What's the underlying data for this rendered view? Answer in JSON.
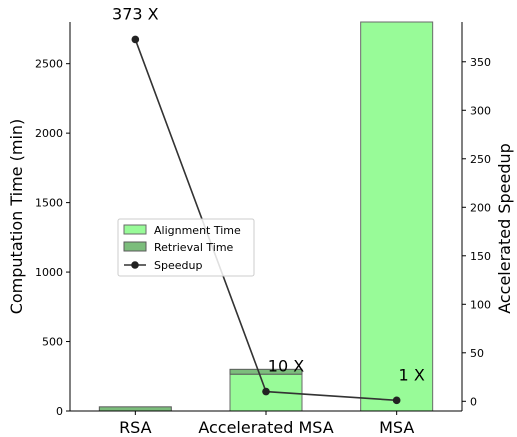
{
  "chart_data": {
    "type": "bar",
    "categories": [
      "RSA",
      "Accelerated MSA",
      "MSA"
    ],
    "series": [
      {
        "name": "Alignment Time",
        "axis": "left",
        "kind": "stacked-bar",
        "values": [
          0,
          265,
          2800
        ],
        "color": "#98fb98"
      },
      {
        "name": "Retrieval Time",
        "axis": "left",
        "kind": "stacked-bar",
        "values": [
          30,
          35,
          0
        ],
        "color": "#7cbd7c"
      },
      {
        "name": "Speedup",
        "axis": "right",
        "kind": "line",
        "values": [
          373,
          10,
          1
        ],
        "color": "#333333"
      }
    ],
    "ylabel": "Computation Time (min)",
    "y2label": "Accelerated Speedup",
    "ylim": [
      0,
      2800
    ],
    "y2lim": [
      -10,
      391
    ],
    "yticks": [
      "0",
      "500",
      "1000",
      "1500",
      "2000",
      "2500"
    ],
    "y2ticks": [
      "0",
      "50",
      "100",
      "150",
      "200",
      "250",
      "300",
      "350"
    ],
    "annotations": [
      "373 X",
      "10 X",
      "1 X"
    ],
    "legend_position": "center-left",
    "grid": false
  }
}
